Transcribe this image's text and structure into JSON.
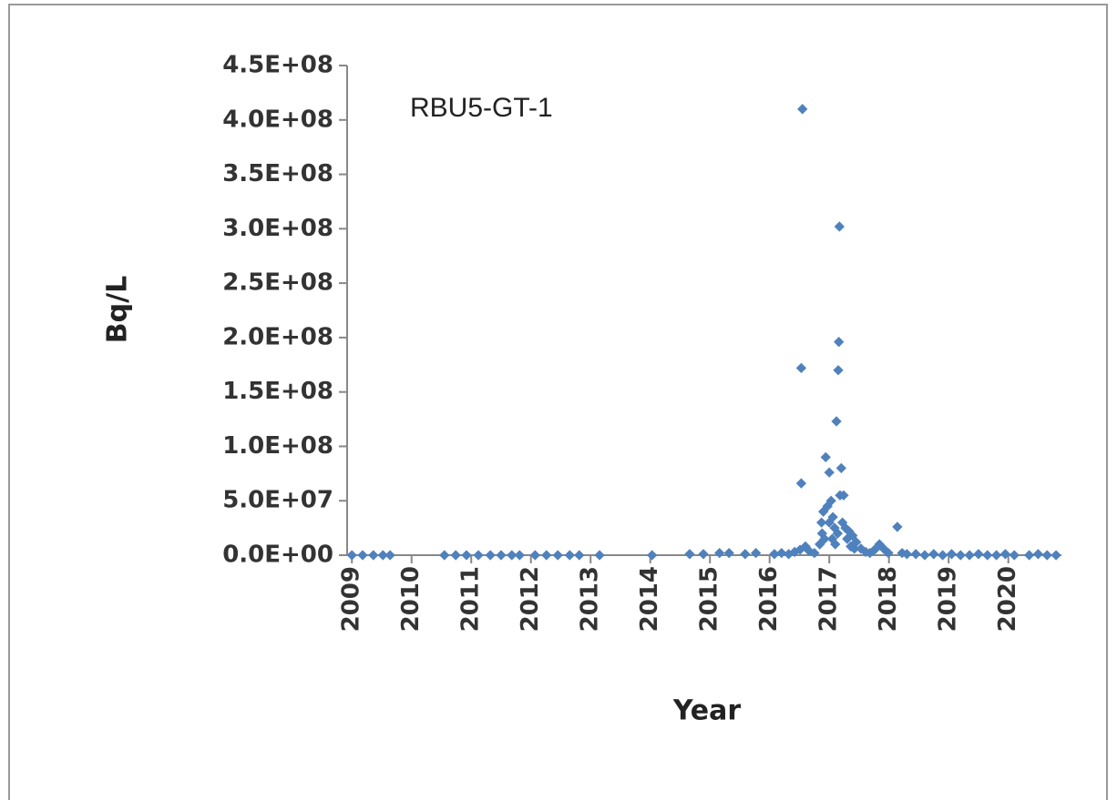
{
  "chart_data": {
    "type": "scatter",
    "annotation": "RBU5-GT-1",
    "xlabel": "Year",
    "ylabel": "Bq/L",
    "color": "#4f81bd",
    "grid": false,
    "xlim": [
      2008.92,
      2020.89
    ],
    "xticks": [
      2009,
      2010,
      2011,
      2012,
      2013,
      2014,
      2015,
      2016,
      2017,
      2018,
      2019,
      2020
    ],
    "ylim": [
      0,
      450000000
    ],
    "yticks": [
      {
        "value": 0,
        "label": "0.0E+00"
      },
      {
        "value": 50000000,
        "label": "5.0E+07"
      },
      {
        "value": 100000000,
        "label": "1.0E+08"
      },
      {
        "value": 150000000,
        "label": "1.5E+08"
      },
      {
        "value": 200000000,
        "label": "2.0E+08"
      },
      {
        "value": 250000000,
        "label": "2.5E+08"
      },
      {
        "value": 300000000,
        "label": "3.0E+08"
      },
      {
        "value": 350000000,
        "label": "3.5E+08"
      },
      {
        "value": 400000000,
        "label": "4.0E+08"
      },
      {
        "value": 450000000,
        "label": "4.5E+08"
      }
    ],
    "x": [
      2009.0,
      2009.18,
      2009.36,
      2009.52,
      2009.64,
      2010.55,
      2010.74,
      2010.92,
      2011.12,
      2011.32,
      2011.5,
      2011.68,
      2011.81,
      2012.07,
      2012.26,
      2012.45,
      2012.65,
      2012.81,
      2013.15,
      2014.03,
      2014.66,
      2014.89,
      2015.16,
      2015.32,
      2015.59,
      2015.77,
      2016.08,
      2016.2,
      2016.32,
      2016.42,
      2016.51,
      2016.6,
      2016.66,
      2016.75,
      2016.55,
      2016.53,
      2016.53,
      2016.84,
      2016.87,
      2016.9,
      2016.94,
      2016.97,
      2017.0,
      2017.03,
      2017.06,
      2017.09,
      2017.12,
      2017.15,
      2017.16,
      2017.17,
      2017.18,
      2017.2,
      2017.24,
      2017.27,
      2017.33,
      2017.39,
      2017.45,
      2017.53,
      2017.61,
      2017.68,
      2017.76,
      2017.84,
      2017.91,
      2017.99,
      2018.14,
      2018.22,
      2016.88,
      2016.92,
      2017.0,
      2017.05,
      2017.1,
      2017.14,
      2017.22,
      2017.3,
      2017.36,
      2017.42,
      2018.3,
      2018.45,
      2018.6,
      2018.75,
      2018.9,
      2019.05,
      2019.2,
      2019.35,
      2019.5,
      2019.65,
      2019.8,
      2019.95,
      2020.1,
      2020.35,
      2020.5,
      2020.65,
      2020.8
    ],
    "values": [
      0,
      0,
      0,
      0,
      0,
      0,
      0,
      0,
      0,
      0,
      0,
      0,
      0,
      0,
      0,
      0,
      0,
      0,
      0,
      0,
      1000000,
      1000000,
      2000000,
      2000000,
      1000000,
      2000000,
      1000000,
      2000000,
      1000000,
      3000000,
      5000000,
      8000000,
      4000000,
      2000000,
      410000000,
      172000000,
      66000000,
      10000000,
      30000000,
      40000000,
      90000000,
      45000000,
      76000000,
      50000000,
      35000000,
      25000000,
      123000000,
      170000000,
      196000000,
      302000000,
      55000000,
      80000000,
      55000000,
      25000000,
      22000000,
      18000000,
      12000000,
      6000000,
      3000000,
      2000000,
      5000000,
      10000000,
      6000000,
      2000000,
      26000000,
      2000000,
      20000000,
      15000000,
      30000000,
      15000000,
      10000000,
      20000000,
      30000000,
      15000000,
      8000000,
      6000000,
      1000000,
      1000000,
      0,
      1000000,
      0,
      1000000,
      0,
      0,
      1000000,
      0,
      0,
      1000000,
      0,
      0,
      1000000,
      0,
      0
    ]
  }
}
